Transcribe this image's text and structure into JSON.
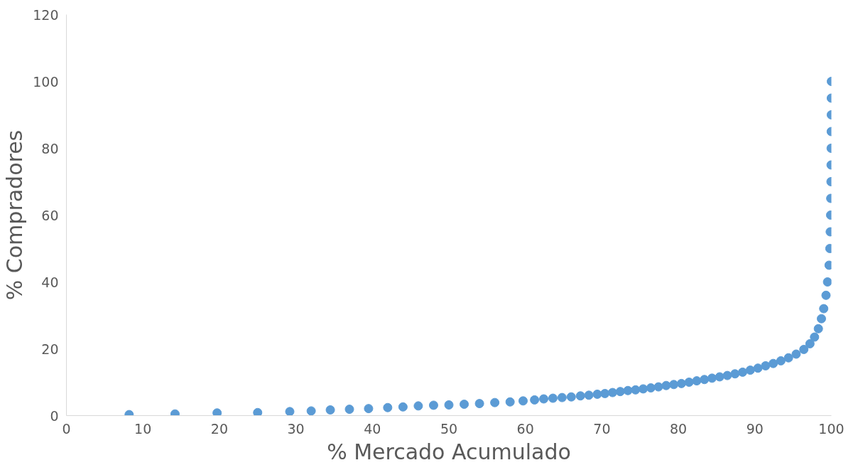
{
  "chart_data": {
    "type": "scatter",
    "xlabel": "% Mercado Acumulado",
    "ylabel": "% Compradores",
    "xlim": [
      0,
      100
    ],
    "ylim": [
      0,
      120
    ],
    "xticks": [
      0,
      10,
      20,
      30,
      40,
      50,
      60,
      70,
      80,
      90,
      100
    ],
    "yticks": [
      0,
      20,
      40,
      60,
      80,
      100,
      120
    ],
    "grid": false,
    "marker": "circle",
    "series": [
      {
        "color": "#5b9bd5",
        "x": [
          8.2,
          14.2,
          19.7,
          25,
          29.2,
          32,
          34.5,
          37,
          39.5,
          42,
          44,
          46,
          48,
          50,
          52,
          54,
          56,
          58,
          59.7,
          61.2,
          62.4,
          63.6,
          64.8,
          66,
          67.2,
          68.3,
          69.4,
          70.4,
          71.4,
          72.4,
          73.4,
          74.4,
          75.4,
          76.4,
          77.4,
          78.4,
          79.4,
          80.4,
          81.4,
          82.4,
          83.4,
          84.4,
          85.4,
          86.4,
          87.4,
          88.4,
          89.4,
          90.4,
          91.4,
          92.4,
          93.4,
          94.4,
          95.4,
          96.4,
          97.2,
          97.8,
          98.3,
          98.7,
          99.0,
          99.3,
          99.5,
          99.7,
          99.8,
          99.85,
          99.9,
          99.92,
          99.95,
          99.96,
          99.97,
          99.98,
          99.99,
          99.99,
          100
        ],
        "values": [
          0.3,
          0.5,
          0.8,
          0.9,
          1.2,
          1.4,
          1.7,
          1.9,
          2.1,
          2.4,
          2.6,
          2.9,
          3.1,
          3.2,
          3.4,
          3.6,
          3.9,
          4.1,
          4.4,
          4.7,
          5.0,
          5.2,
          5.4,
          5.6,
          5.9,
          6.1,
          6.4,
          6.6,
          6.9,
          7.2,
          7.5,
          7.7,
          8.0,
          8.3,
          8.6,
          9.0,
          9.3,
          9.6,
          10.0,
          10.4,
          10.8,
          11.2,
          11.6,
          12.0,
          12.5,
          13.0,
          13.6,
          14.2,
          14.9,
          15.6,
          16.4,
          17.3,
          18.4,
          19.8,
          21.5,
          23.5,
          26,
          29,
          32,
          36,
          40,
          45,
          50,
          55,
          60,
          65,
          70,
          75,
          80,
          85,
          90,
          95,
          100
        ]
      }
    ]
  }
}
